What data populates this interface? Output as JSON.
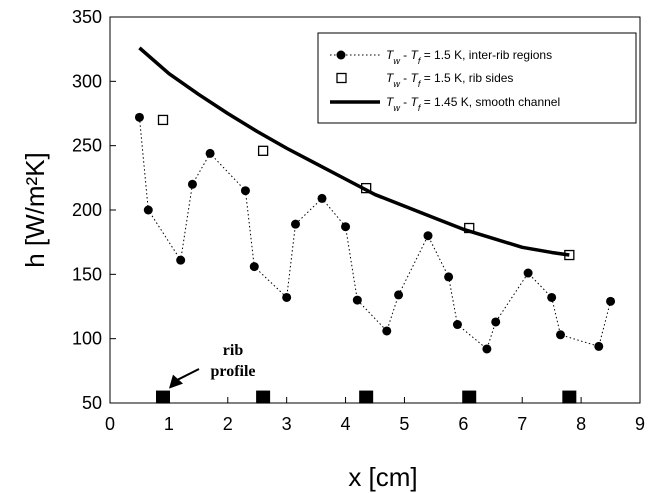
{
  "chart_data": {
    "type": "scatter",
    "title": "",
    "xlabel": "x  [cm]",
    "ylabel": "h [W/m²K]",
    "xlim": [
      0,
      9
    ],
    "ylim": [
      50,
      350
    ],
    "xticks": [
      "0",
      "1",
      "2",
      "3",
      "4",
      "5",
      "6",
      "7",
      "8",
      "9"
    ],
    "yticks": [
      "50",
      "100",
      "150",
      "200",
      "250",
      "300",
      "350"
    ],
    "grid": false,
    "legend_position": "top-right",
    "series": [
      {
        "name_parts": [
          "T",
          "w",
          " - ",
          "T",
          "f",
          " = 1.5 K, inter-rib regions"
        ],
        "style": "dotted-line-filled-circle",
        "x": [
          0.5,
          0.65,
          1.2,
          1.4,
          1.7,
          2.3,
          2.45,
          3.0,
          3.15,
          3.6,
          4.0,
          4.2,
          4.7,
          4.9,
          5.4,
          5.75,
          5.9,
          6.4,
          6.55,
          7.1,
          7.5,
          7.65,
          8.3,
          8.5
        ],
        "y": [
          272,
          200,
          161,
          220,
          244,
          215,
          156,
          132,
          189,
          209,
          187,
          130,
          106,
          134,
          180,
          148,
          111,
          92,
          113,
          151,
          132,
          103,
          94,
          129
        ]
      },
      {
        "name_parts": [
          "T",
          "w",
          " - ",
          "T",
          "f",
          " = 1.5 K, rib sides"
        ],
        "style": "open-square",
        "x": [
          0.9,
          2.6,
          4.35,
          6.1,
          7.8
        ],
        "y": [
          270,
          246,
          217,
          186,
          165
        ]
      },
      {
        "name_parts": [
          "T",
          "w",
          " - ",
          "T",
          "f",
          " = 1.45 K, smooth channel"
        ],
        "style": "thick-line",
        "x": [
          0.5,
          1.0,
          1.5,
          2.0,
          2.5,
          3.0,
          3.5,
          4.0,
          4.5,
          5.0,
          5.5,
          6.0,
          6.5,
          7.0,
          7.5,
          7.8
        ],
        "y": [
          326,
          306,
          290,
          275,
          261,
          248,
          236,
          224,
          212,
          203,
          194,
          185,
          178,
          171,
          167,
          165
        ]
      }
    ],
    "rib_markers": {
      "x": [
        0.9,
        2.6,
        4.35,
        6.1,
        7.8
      ],
      "y": 55
    },
    "annotation": {
      "lines": [
        "rib",
        "profile"
      ],
      "arrow_target": {
        "x": 0.9,
        "y": 55
      }
    }
  }
}
